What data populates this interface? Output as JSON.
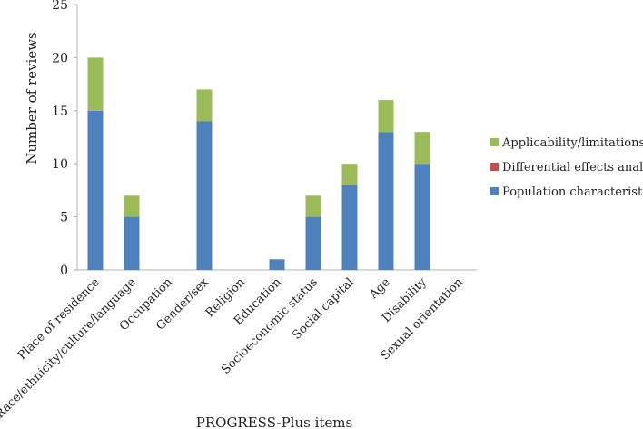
{
  "chart_data": {
    "type": "bar",
    "stacked": true,
    "title": "",
    "xlabel": "PROGRESS-Plus items",
    "ylabel": "Number of reviews",
    "ylim": [
      0,
      25
    ],
    "yticks": [
      0,
      5,
      10,
      15,
      20,
      25
    ],
    "grid": false,
    "legend_position": "right",
    "categories": [
      "Place of residence",
      "Race/ethnicity/culture/language",
      "Occupation",
      "Gender/sex",
      "Religion",
      "Education",
      "Socioeconomic status",
      "Social capital",
      "Age",
      "Disability",
      "Sexual orientation"
    ],
    "series": [
      {
        "name": "Population characteristics",
        "color": "#4f81bd",
        "values": [
          15,
          5,
          0,
          14,
          0,
          1,
          5,
          8,
          13,
          10,
          0
        ]
      },
      {
        "name": "Differential effects analysis",
        "color": "#c0504d",
        "values": [
          0,
          0,
          0,
          0,
          0,
          0,
          0,
          0,
          0,
          0,
          0
        ]
      },
      {
        "name": "Applicability/limitations",
        "color": "#9bbb59",
        "values": [
          5,
          2,
          0,
          3,
          0,
          0,
          2,
          2,
          3,
          3,
          0
        ]
      }
    ],
    "legend_order": [
      "Applicability/limitations",
      "Differential effects analysis",
      "Population characteristics"
    ]
  }
}
